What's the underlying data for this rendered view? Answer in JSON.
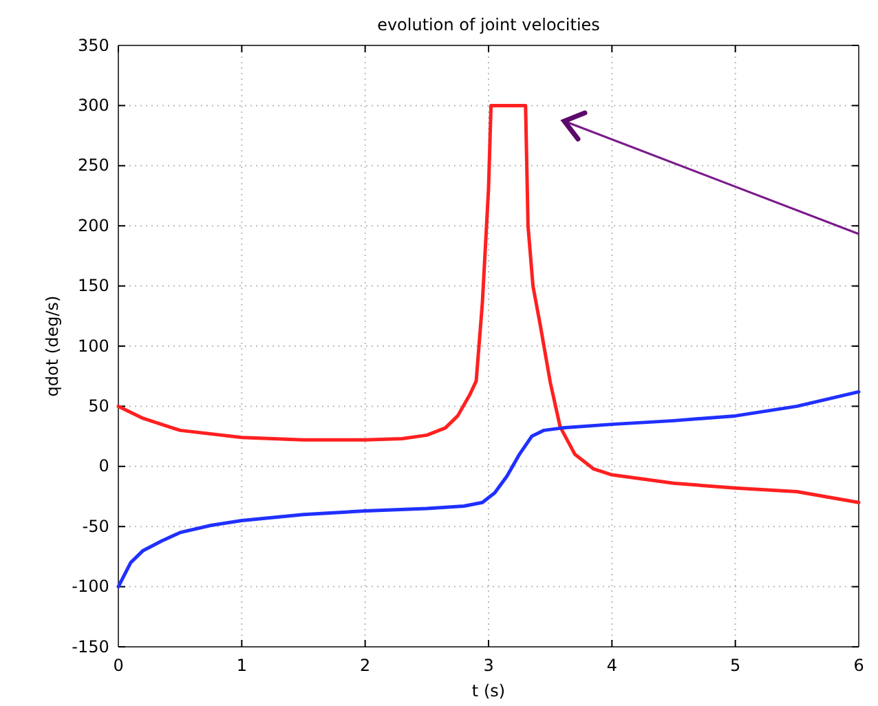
{
  "chart_data": {
    "type": "line",
    "title": "evolution of joint velocities",
    "xlabel": "t (s)",
    "ylabel": "qdot (deg/s)",
    "xlim": [
      0,
      6
    ],
    "xticks": [
      0,
      1,
      2,
      3,
      4,
      5,
      6
    ],
    "ylim": [
      -150,
      350
    ],
    "yticks": [
      -150,
      -100,
      -50,
      0,
      50,
      100,
      150,
      200,
      250,
      300,
      350
    ],
    "grid": true,
    "line_style": "solid",
    "series": [
      {
        "color": "#ff2020",
        "x": [
          0,
          0.2,
          0.5,
          1,
          1.5,
          2,
          2.3,
          2.5,
          2.65,
          2.75,
          2.85,
          2.9,
          2.95,
          3.0,
          3.02,
          3.1,
          3.2,
          3.3,
          3.32,
          3.36,
          3.42,
          3.5,
          3.58,
          3.7,
          3.85,
          4,
          4.5,
          5,
          5.5,
          6
        ],
        "values": [
          50,
          40,
          30,
          24,
          22,
          22,
          23,
          26,
          32,
          42,
          60,
          71,
          136,
          231,
          300,
          300,
          300,
          300,
          200,
          150,
          117,
          70,
          33,
          10,
          -2,
          -7,
          -14,
          -18,
          -21,
          -30
        ]
      },
      {
        "color": "#2030ff",
        "x": [
          0,
          0.1,
          0.2,
          0.35,
          0.5,
          0.75,
          1,
          1.5,
          2,
          2.5,
          2.8,
          2.95,
          3.05,
          3.15,
          3.25,
          3.35,
          3.45,
          3.6,
          4,
          4.5,
          5,
          5.5,
          6
        ],
        "values": [
          -100,
          -80,
          -70,
          -62,
          -55,
          -49,
          -45,
          -40,
          -37,
          -35,
          -33,
          -30,
          -22,
          -8,
          10,
          25,
          30,
          32,
          35,
          38,
          42,
          50,
          62
        ]
      }
    ]
  }
}
